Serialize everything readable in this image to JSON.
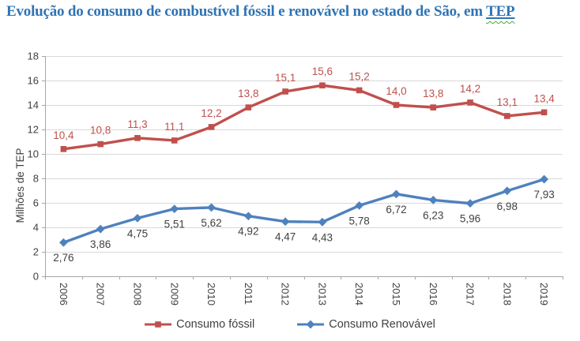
{
  "page": {
    "background": "#FFFFFF",
    "title_prefix": "Evolução do consumo de combustível fóssil e renovável no estado de São, em ",
    "title_highlight": "TEP",
    "title_color": "#2E74B5",
    "spellcheck_squiggle_color": "#4EA72E"
  },
  "chart_data": {
    "type": "line",
    "title": "Evolução do consumo de combustível fóssil e renovável no estado de São, em TEP",
    "xlabel": "",
    "ylabel": "Milhões de TEP",
    "categories": [
      "2006",
      "2007",
      "2008",
      "2009",
      "2010",
      "2011",
      "2012",
      "2013",
      "2014",
      "2015",
      "2016",
      "2017",
      "2018",
      "2019"
    ],
    "ylim": [
      0,
      18
    ],
    "ytick_step": 2,
    "grid": true,
    "legend_position": "bottom",
    "decimal_separator": ",",
    "series": [
      {
        "name": "Consumo fóssil",
        "color": "#C0504D",
        "marker": "square",
        "label_position": "above",
        "label_color": "#C0504D",
        "values": [
          10.4,
          10.8,
          11.3,
          11.1,
          12.2,
          13.8,
          15.1,
          15.6,
          15.2,
          14.0,
          13.8,
          14.2,
          13.1,
          13.4
        ],
        "labels": [
          "10,4",
          "10,8",
          "11,3",
          "11,1",
          "12,2",
          "13,8",
          "15,1",
          "15,6",
          "15,2",
          "14,0",
          "13,8",
          "14,2",
          "13,1",
          "13,4"
        ]
      },
      {
        "name": "Consumo Renovável",
        "color": "#4F81BD",
        "marker": "diamond",
        "label_position": "below",
        "label_color": "#404040",
        "values": [
          2.76,
          3.86,
          4.75,
          5.51,
          5.62,
          4.92,
          4.47,
          4.43,
          5.78,
          6.72,
          6.23,
          5.96,
          6.98,
          7.93
        ],
        "labels": [
          "2,76",
          "3,86",
          "4,75",
          "5,51",
          "5,62",
          "4,92",
          "4,47",
          "4,43",
          "5,78",
          "6,72",
          "6,23",
          "5,96",
          "6,98",
          "7,93"
        ]
      }
    ],
    "axis": {
      "tick_color": "#A6A6A6",
      "grid_color": "#D9D9D9",
      "text_color": "#404040"
    }
  }
}
